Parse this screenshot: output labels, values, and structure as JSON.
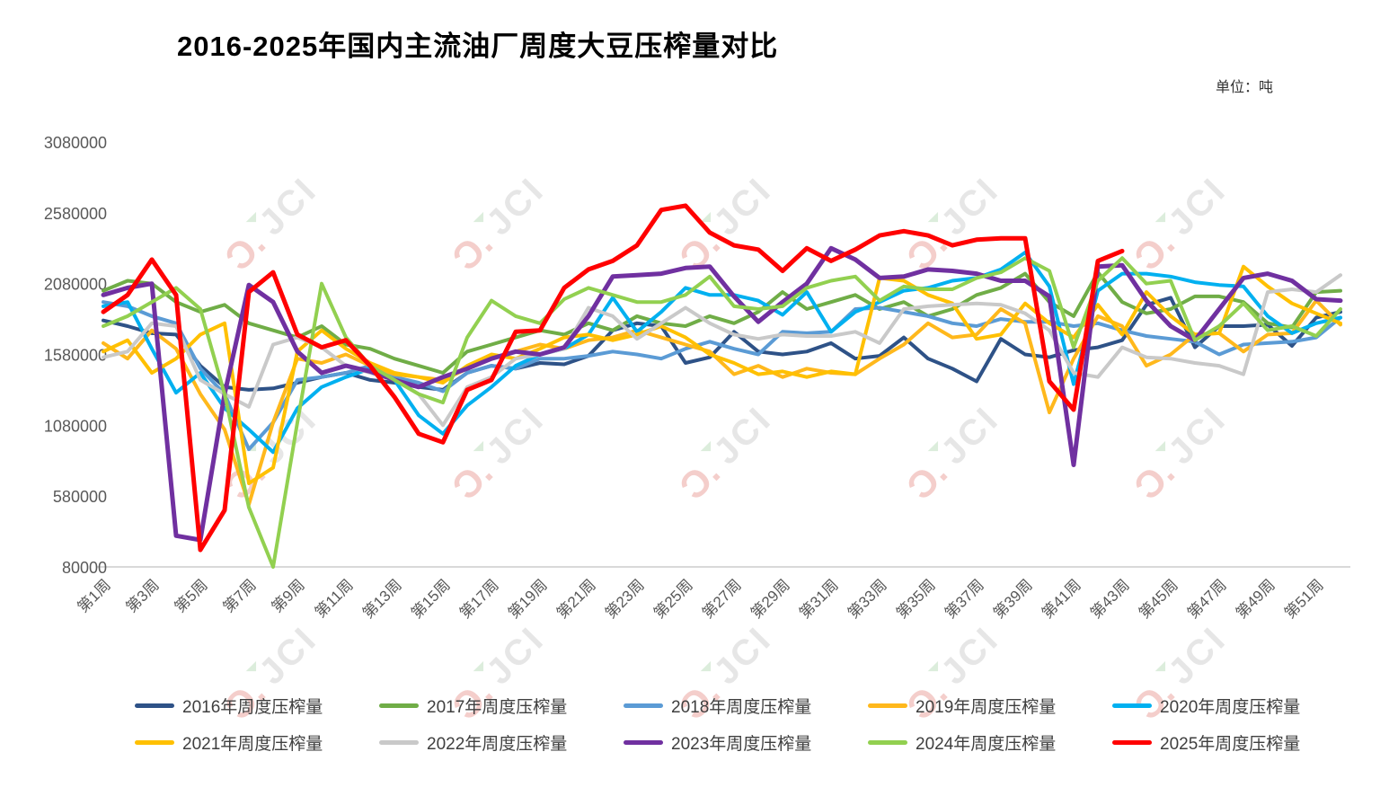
{
  "title": "2016-2025年国内主流油厂周度大豆压榨量对比",
  "unit_label": "单位：吨",
  "watermark": {
    "mark": "Ɔ.",
    "text": "JCI",
    "mark_color": "#f3c9c6",
    "text_color": "#e4e4e4",
    "accent_color": "#d9ecd9"
  },
  "chart_data": {
    "type": "line",
    "title": "2016-2025年国内主流油厂周度大豆压榨量对比",
    "ylabel": "吨",
    "grid": false,
    "legend_position": "bottom",
    "x_axis": {
      "unit": "周",
      "weeks": 52,
      "tick_labels": [
        "第1周",
        "第3周",
        "第5周",
        "第7周",
        "第9周",
        "第11周",
        "第13周",
        "第15周",
        "第17周",
        "第19周",
        "第21周",
        "第23周",
        "第25周",
        "第27周",
        "第29周",
        "第31周",
        "第33周",
        "第35周",
        "第37周",
        "第39周",
        "第41周",
        "第43周",
        "第45周",
        "第47周",
        "第49周",
        "第51周"
      ]
    },
    "y_axis": {
      "min": 80000,
      "max": 3080000,
      "tick_labels": [
        3080000,
        2580000,
        2080000,
        1580000,
        1080000,
        580000,
        80000
      ]
    },
    "series": [
      {
        "name": "2016年周度压榨量",
        "color": "#2E5287",
        "width": 4,
        "values": [
          1820000,
          1780000,
          1730000,
          1720000,
          1500000,
          1350000,
          1330000,
          1340000,
          1380000,
          1420000,
          1450000,
          1400000,
          1380000,
          1350000,
          1330000,
          1450000,
          1500000,
          1480000,
          1520000,
          1510000,
          1570000,
          1750000,
          1800000,
          1780000,
          1520000,
          1560000,
          1740000,
          1600000,
          1580000,
          1600000,
          1660000,
          1550000,
          1570000,
          1700000,
          1550000,
          1480000,
          1390000,
          1690000,
          1580000,
          1560000,
          1610000,
          1630000,
          1680000,
          1930000,
          1980000,
          1630000,
          1780000,
          1780000,
          1790000,
          1640000,
          1840000,
          1880000
        ]
      },
      {
        "name": "2017年周度压榨量",
        "color": "#70AD47",
        "width": 4,
        "values": [
          2030000,
          2100000,
          2080000,
          1950000,
          1880000,
          1930000,
          1800000,
          1750000,
          1700000,
          1780000,
          1650000,
          1620000,
          1550000,
          1500000,
          1450000,
          1600000,
          1650000,
          1700000,
          1750000,
          1720000,
          1800000,
          1750000,
          1850000,
          1800000,
          1780000,
          1850000,
          1800000,
          1880000,
          2020000,
          1900000,
          1950000,
          2000000,
          1900000,
          1950000,
          1850000,
          1900000,
          2000000,
          2050000,
          2150000,
          1950000,
          1850000,
          2160000,
          1950000,
          1870000,
          1900000,
          1990000,
          1990000,
          1950000,
          1800000,
          1770000,
          2020000,
          2030000
        ]
      },
      {
        "name": "2018年周度压榨量",
        "color": "#5B9BD5",
        "width": 4,
        "values": [
          1950000,
          1920000,
          1850000,
          1800000,
          1480000,
          1300000,
          910000,
          1100000,
          1400000,
          1420000,
          1450000,
          1500000,
          1420000,
          1380000,
          1320000,
          1450000,
          1500000,
          1480000,
          1550000,
          1550000,
          1570000,
          1600000,
          1580000,
          1550000,
          1620000,
          1670000,
          1620000,
          1580000,
          1740000,
          1730000,
          1740000,
          1900000,
          1910000,
          1880000,
          1850000,
          1800000,
          1780000,
          1830000,
          1810000,
          1810000,
          1780000,
          1800000,
          1750000,
          1710000,
          1690000,
          1670000,
          1580000,
          1650000,
          1660000,
          1670000,
          1700000,
          1840000
        ]
      },
      {
        "name": "2019年周度压榨量",
        "color": "#FFB81C",
        "width": 4,
        "values": [
          1660000,
          1550000,
          1750000,
          1620000,
          1300000,
          1050000,
          520000,
          1100000,
          1550000,
          1520000,
          1580000,
          1500000,
          1440000,
          1420000,
          1400000,
          1480000,
          1550000,
          1600000,
          1650000,
          1620000,
          1680000,
          1700000,
          1750000,
          1700000,
          1650000,
          1600000,
          1440000,
          1500000,
          1420000,
          1480000,
          1450000,
          1440000,
          1550000,
          1650000,
          1800000,
          1700000,
          1720000,
          1900000,
          1800000,
          1170000,
          1550000,
          1850000,
          1780000,
          1500000,
          1580000,
          1720000,
          1730000,
          1600000,
          1720000,
          1730000,
          1960000,
          1790000
        ]
      },
      {
        "name": "2020年周度压榨量",
        "color": "#00B0F0",
        "width": 4,
        "values": [
          1920000,
          1950000,
          1620000,
          1310000,
          1450000,
          1200000,
          1050000,
          890000,
          1200000,
          1350000,
          1420000,
          1480000,
          1400000,
          1150000,
          1020000,
          1220000,
          1350000,
          1500000,
          1580000,
          1620000,
          1720000,
          1980000,
          1740000,
          1880000,
          2050000,
          2000000,
          2000000,
          1960000,
          1860000,
          2020000,
          1740000,
          1880000,
          1950000,
          2030000,
          2050000,
          2100000,
          2120000,
          2180000,
          2300000,
          2060000,
          1370000,
          2030000,
          2150000,
          2150000,
          2130000,
          2090000,
          2070000,
          2060000,
          1850000,
          1730000,
          1800000,
          1840000
        ]
      },
      {
        "name": "2021年周度压榨量",
        "color": "#FFC000",
        "width": 4,
        "values": [
          1600000,
          1680000,
          1450000,
          1550000,
          1720000,
          1800000,
          670000,
          780000,
          1600000,
          1750000,
          1620000,
          1520000,
          1450000,
          1420000,
          1380000,
          1500000,
          1580000,
          1550000,
          1620000,
          1700000,
          1720000,
          1680000,
          1720000,
          1780000,
          1700000,
          1580000,
          1520000,
          1440000,
          1460000,
          1420000,
          1460000,
          1440000,
          2120000,
          2100000,
          2000000,
          1940000,
          1690000,
          1720000,
          1940000,
          1800000,
          1700000,
          1930000,
          1720000,
          2020000,
          1850000,
          1720000,
          1730000,
          2200000,
          2060000,
          1940000,
          1870000,
          1800000
        ]
      },
      {
        "name": "2022年周度压榨量",
        "color": "#C9C9C9",
        "width": 4,
        "values": [
          1560000,
          1600000,
          1800000,
          1780000,
          1400000,
          1300000,
          1210000,
          1650000,
          1700000,
          1630000,
          1500000,
          1450000,
          1400000,
          1300000,
          1080000,
          1350000,
          1420000,
          1550000,
          1580000,
          1620000,
          1910000,
          1850000,
          1690000,
          1800000,
          1910000,
          1800000,
          1720000,
          1690000,
          1720000,
          1710000,
          1710000,
          1740000,
          1660000,
          1900000,
          1920000,
          1930000,
          1940000,
          1930000,
          1870000,
          1750000,
          1450000,
          1420000,
          1630000,
          1560000,
          1550000,
          1520000,
          1500000,
          1440000,
          2020000,
          2040000,
          2020000,
          2140000
        ]
      },
      {
        "name": "2023年周度压榨量",
        "color": "#7030A0",
        "width": 5,
        "values": [
          2000000,
          2050000,
          2080000,
          300000,
          270000,
          1300000,
          2070000,
          1950000,
          1600000,
          1450000,
          1500000,
          1460000,
          1400000,
          1350000,
          1420000,
          1480000,
          1550000,
          1600000,
          1580000,
          1630000,
          1850000,
          2130000,
          2140000,
          2150000,
          2190000,
          2200000,
          1990000,
          1810000,
          1950000,
          2080000,
          2330000,
          2250000,
          2120000,
          2130000,
          2180000,
          2170000,
          2150000,
          2100000,
          2100000,
          1990000,
          800000,
          2200000,
          2210000,
          1960000,
          1780000,
          1680000,
          1900000,
          2120000,
          2150000,
          2100000,
          1970000,
          1960000
        ]
      },
      {
        "name": "2024年周度压榨量",
        "color": "#92D050",
        "width": 4,
        "values": [
          1780000,
          1850000,
          1950000,
          2050000,
          1900000,
          1300000,
          500000,
          80000,
          1100000,
          2080000,
          1700000,
          1500000,
          1400000,
          1300000,
          1240000,
          1700000,
          1960000,
          1850000,
          1800000,
          1970000,
          2050000,
          2000000,
          1950000,
          1950000,
          2000000,
          2130000,
          1920000,
          1900000,
          1920000,
          2050000,
          2100000,
          2130000,
          1960000,
          2060000,
          2040000,
          2040000,
          2120000,
          2160000,
          2260000,
          2170000,
          1630000,
          2100000,
          2260000,
          2080000,
          2100000,
          1680000,
          1780000,
          1940000,
          1750000,
          1780000,
          1710000,
          1900000
        ]
      },
      {
        "name": "2025年周度压榨量",
        "color": "#FF0000",
        "width": 5,
        "values": [
          1880000,
          2000000,
          2250000,
          2000000,
          200000,
          480000,
          2020000,
          2160000,
          1720000,
          1630000,
          1680000,
          1500000,
          1280000,
          1020000,
          960000,
          1330000,
          1400000,
          1740000,
          1750000,
          2050000,
          2180000,
          2240000,
          2350000,
          2600000,
          2630000,
          2440000,
          2350000,
          2320000,
          2170000,
          2330000,
          2240000,
          2320000,
          2420000,
          2450000,
          2420000,
          2350000,
          2390000,
          2400000,
          2400000,
          1390000,
          1190000,
          2240000,
          2310000
        ]
      }
    ]
  }
}
